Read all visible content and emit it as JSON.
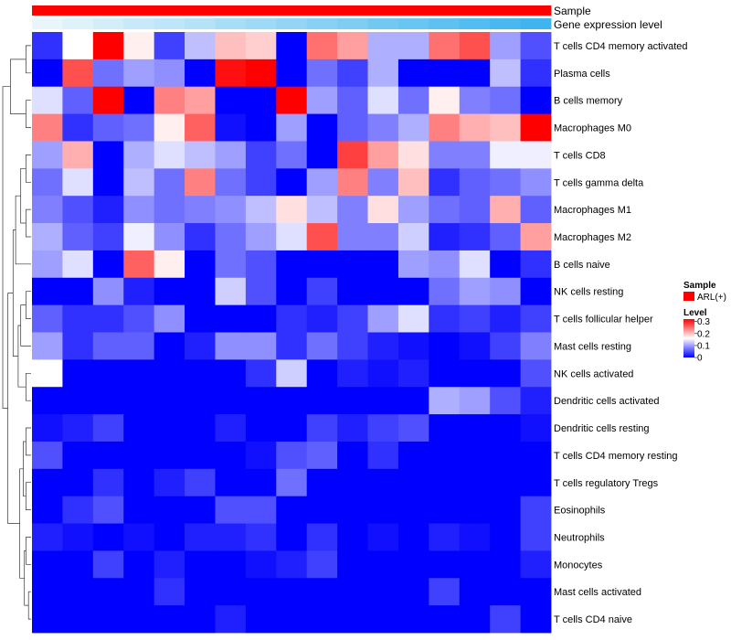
{
  "chart_data": {
    "type": "heatmap",
    "annotations": {
      "sample_label": "Sample",
      "gene_expression_label": "Gene expression level"
    },
    "rows": [
      "T cells CD4 memory activated",
      "Plasma cells",
      "B cells memory",
      "Macrophages M0",
      "T cells CD8",
      "T cells gamma delta",
      "Macrophages M1",
      "Macrophages M2",
      "B cells naive",
      "NK cells resting",
      "T cells follicular helper",
      "Mast cells resting",
      "NK cells activated",
      "Dendritic cells activated",
      "Dendritic cells resting",
      "T cells CD4 memory resting",
      "T cells regulatory  Tregs",
      "Eosinophils",
      "Neutrophils",
      "Monocytes",
      "Mast cells activated",
      "T cells CD4 naive"
    ],
    "values": [
      [
        0.03,
        0.16,
        0.32,
        0.17,
        0.04,
        0.12,
        0.2,
        0.19,
        0.0,
        0.25,
        0.22,
        0.11,
        0.11,
        0.25,
        0.27,
        0.1,
        0.05
      ],
      [
        0.0,
        0.27,
        0.07,
        0.1,
        0.09,
        0.0,
        0.31,
        0.32,
        0.0,
        0.07,
        0.04,
        0.11,
        0.0,
        0.0,
        0.0,
        0.12,
        0.03
      ],
      [
        0.14,
        0.06,
        0.32,
        0.0,
        0.24,
        0.22,
        0.0,
        0.0,
        0.32,
        0.1,
        0.06,
        0.14,
        0.07,
        0.17,
        0.08,
        0.07,
        0.0
      ],
      [
        0.24,
        0.03,
        0.06,
        0.07,
        0.17,
        0.26,
        0.01,
        0.0,
        0.1,
        0.0,
        0.06,
        0.08,
        0.11,
        0.24,
        0.21,
        0.2,
        0.32
      ],
      [
        0.1,
        0.21,
        0.0,
        0.11,
        0.14,
        0.12,
        0.1,
        0.04,
        0.07,
        0.0,
        0.28,
        0.22,
        0.18,
        0.08,
        0.08,
        0.15,
        0.15
      ],
      [
        0.07,
        0.14,
        0.0,
        0.12,
        0.07,
        0.24,
        0.07,
        0.04,
        0.0,
        0.1,
        0.24,
        0.08,
        0.2,
        0.03,
        0.06,
        0.07,
        0.09
      ],
      [
        0.08,
        0.05,
        0.02,
        0.09,
        0.07,
        0.08,
        0.09,
        0.12,
        0.18,
        0.12,
        0.08,
        0.18,
        0.1,
        0.07,
        0.06,
        0.21,
        0.06
      ],
      [
        0.11,
        0.06,
        0.04,
        0.15,
        0.09,
        0.03,
        0.07,
        0.1,
        0.14,
        0.27,
        0.08,
        0.08,
        0.13,
        0.02,
        0.03,
        0.06,
        0.22
      ],
      [
        0.1,
        0.14,
        0.0,
        0.26,
        0.17,
        0.0,
        0.07,
        0.05,
        0.0,
        0.0,
        0.0,
        0.0,
        0.1,
        0.09,
        0.14,
        0.0,
        0.03
      ],
      [
        0.0,
        0.0,
        0.09,
        0.02,
        0.0,
        0.0,
        0.13,
        0.05,
        0.0,
        0.04,
        0.0,
        0.0,
        0.0,
        0.07,
        0.1,
        0.09,
        0.0
      ],
      [
        0.06,
        0.03,
        0.03,
        0.05,
        0.09,
        0.0,
        0.0,
        0.0,
        0.03,
        0.02,
        0.04,
        0.1,
        0.14,
        0.03,
        0.04,
        0.02,
        0.04
      ],
      [
        0.1,
        0.03,
        0.06,
        0.06,
        0.0,
        0.02,
        0.09,
        0.09,
        0.03,
        0.07,
        0.04,
        0.02,
        0.01,
        0.0,
        0.01,
        0.04,
        0.08
      ],
      [
        0.16,
        0.0,
        0.0,
        0.0,
        0.0,
        0.0,
        0.0,
        0.03,
        0.13,
        0.0,
        0.02,
        0.01,
        0.02,
        0.0,
        0.0,
        0.0,
        0.05
      ],
      [
        0.0,
        0.0,
        0.0,
        0.0,
        0.0,
        0.0,
        0.0,
        0.0,
        0.0,
        0.0,
        0.0,
        0.0,
        0.0,
        0.11,
        0.1,
        0.05,
        0.02
      ],
      [
        0.01,
        0.02,
        0.04,
        0.0,
        0.0,
        0.0,
        0.02,
        0.0,
        0.0,
        0.04,
        0.02,
        0.04,
        0.05,
        0.0,
        0.0,
        0.0,
        0.01
      ],
      [
        0.05,
        0.0,
        0.0,
        0.0,
        0.0,
        0.0,
        0.0,
        0.01,
        0.05,
        0.06,
        0.0,
        0.03,
        0.0,
        0.0,
        0.0,
        0.0,
        0.0
      ],
      [
        0.0,
        0.0,
        0.03,
        0.0,
        0.02,
        0.04,
        0.0,
        0.0,
        0.07,
        0.0,
        0.0,
        0.0,
        0.0,
        0.0,
        0.0,
        0.0,
        0.0
      ],
      [
        0.0,
        0.03,
        0.05,
        0.0,
        0.0,
        0.0,
        0.05,
        0.05,
        0.0,
        0.0,
        0.0,
        0.0,
        0.0,
        0.0,
        0.0,
        0.0,
        0.04
      ],
      [
        0.02,
        0.01,
        0.0,
        0.01,
        0.0,
        0.02,
        0.02,
        0.03,
        0.0,
        0.03,
        0.0,
        0.01,
        0.0,
        0.02,
        0.01,
        0.0,
        0.04
      ],
      [
        0.0,
        0.0,
        0.04,
        0.0,
        0.02,
        0.0,
        0.0,
        0.01,
        0.02,
        0.04,
        0.0,
        0.0,
        0.0,
        0.0,
        0.0,
        0.0,
        0.02
      ],
      [
        0.0,
        0.0,
        0.0,
        0.0,
        0.03,
        0.0,
        0.0,
        0.0,
        0.0,
        0.0,
        0.0,
        0.0,
        0.0,
        0.04,
        0.0,
        0.0,
        0.0
      ],
      [
        0.0,
        0.0,
        0.0,
        0.0,
        0.0,
        0.0,
        0.02,
        0.0,
        0.0,
        0.0,
        0.0,
        0.0,
        0.0,
        0.0,
        0.0,
        0.04,
        0.0
      ]
    ],
    "gene_expression_levels": [
      0.0,
      0.06,
      0.12,
      0.19,
      0.25,
      0.31,
      0.38,
      0.44,
      0.5,
      0.56,
      0.62,
      0.69,
      0.75,
      0.81,
      0.88,
      0.94,
      1.0
    ],
    "sample_groups": [
      "ARL(+)",
      "ARL(+)",
      "ARL(+)",
      "ARL(+)",
      "ARL(+)",
      "ARL(+)",
      "ARL(+)",
      "ARL(+)",
      "ARL(+)",
      "ARL(+)",
      "ARL(+)",
      "ARL(+)",
      "ARL(+)",
      "ARL(+)",
      "ARL(+)",
      "ARL(+)",
      "ARL(+)"
    ],
    "color_scale": {
      "low": "#0000ff",
      "mid": "#ffffff",
      "high": "#ff0000",
      "min": 0,
      "mid_value": 0.16,
      "max": 0.32
    },
    "legend": {
      "sample_title": "Sample",
      "sample_entry": "ARL(+)",
      "sample_color": "#ff0000",
      "level_title": "Level",
      "ticks": [
        "0.3",
        "0.2",
        "0.1",
        "0"
      ],
      "tick_values": [
        0.3,
        0.2,
        0.1,
        0
      ]
    },
    "gene_expression_colors": {
      "low": "#e8f6fb",
      "high": "#3fb4ee"
    },
    "row_dendrogram": [
      {
        "a": 0,
        "b": 1,
        "h": 1
      },
      {
        "a": 2,
        "b": 3,
        "h": 1
      },
      {
        "a": "c0",
        "b": "c1",
        "h": 4
      },
      {
        "a": 4,
        "b": 5,
        "h": 1
      },
      {
        "a": 6,
        "b": 7,
        "h": 1
      },
      {
        "a": "c3",
        "b": "c4",
        "h": 2
      },
      {
        "a": "c5",
        "b": 8,
        "h": 3
      },
      {
        "a": 9,
        "b": 10,
        "h": 1
      },
      {
        "a": "c7",
        "b": 11,
        "h": 2
      },
      {
        "a": 12,
        "b": 13,
        "h": 1
      },
      {
        "a": "c8",
        "b": "c9",
        "h": 2.5
      },
      {
        "a": "c6",
        "b": "c10",
        "h": 3.5
      },
      {
        "a": 14,
        "b": 15,
        "h": 1
      },
      {
        "a": 16,
        "b": 17,
        "h": 1
      },
      {
        "a": "c12",
        "b": "c13",
        "h": 1.5
      },
      {
        "a": 18,
        "b": 19,
        "h": 1
      },
      {
        "a": 20,
        "b": 21,
        "h": 0.5
      },
      {
        "a": "c15",
        "b": "c16",
        "h": 1.3
      },
      {
        "a": "c14",
        "b": "c17",
        "h": 2.2
      },
      {
        "a": "c11",
        "b": "c18",
        "h": 4.5
      },
      {
        "a": "c2",
        "b": "c19",
        "h": 5.5
      }
    ]
  }
}
